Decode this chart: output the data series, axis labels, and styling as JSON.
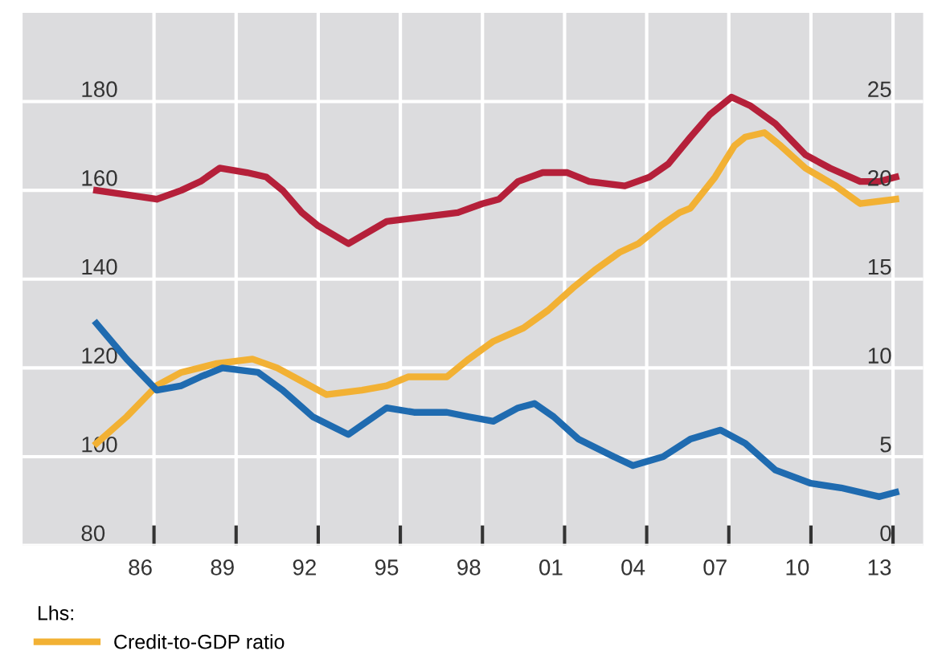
{
  "chart_data": {
    "type": "line",
    "legend_title": "Lhs:",
    "legend": "bottom left",
    "grid": true,
    "line_style": "solid",
    "marker": "none",
    "xlim": [
      1981.7,
      2014.6
    ],
    "ylim": [
      80,
      200
    ],
    "y2lim": [
      0,
      30
    ],
    "xticks": [
      {
        "value": 1986,
        "label": "86"
      },
      {
        "value": 1989,
        "label": "89"
      },
      {
        "value": 1992,
        "label": "92"
      },
      {
        "value": 1995,
        "label": "95"
      },
      {
        "value": 1998,
        "label": "98"
      },
      {
        "value": 2001,
        "label": "01"
      },
      {
        "value": 2004,
        "label": "04"
      },
      {
        "value": 2007,
        "label": "07"
      },
      {
        "value": 2010,
        "label": "10"
      },
      {
        "value": 2013,
        "label": "13"
      },
      {
        "value": 1986.5,
        "label": null
      },
      {
        "value": 1989.5,
        "label": null
      },
      {
        "value": 1992.5,
        "label": null
      },
      {
        "value": 1995.5,
        "label": null
      },
      {
        "value": 1998.5,
        "label": null
      },
      {
        "value": 2001.5,
        "label": null
      },
      {
        "value": 2004.5,
        "label": null
      },
      {
        "value": 2007.5,
        "label": null
      },
      {
        "value": 2010.5,
        "label": null
      },
      {
        "value": 2013.5,
        "label": null
      }
    ],
    "yticks": [
      80,
      100,
      120,
      140,
      160,
      180
    ],
    "y2ticks": [
      0,
      5,
      10,
      15,
      20,
      25
    ],
    "series": [
      {
        "color": "#b5203a",
        "x": [
          1984.4,
          1985.5,
          1986.6,
          1987.5,
          1988.2,
          1988.9,
          1989.9,
          1990.6,
          1991.2,
          1991.9,
          1992.5,
          1993.6,
          1995.0,
          1996.3,
          1997.6,
          1998.5,
          1999.1,
          1999.8,
          2000.7,
          2001.6,
          2002.4,
          2003.7,
          2004.6,
          2005.3,
          2006.1,
          2006.8,
          2007.6,
          2008.3,
          2009.2,
          2010.3,
          2011.2,
          2012.3,
          2013.0,
          2013.6
        ],
        "values": [
          160,
          159,
          158,
          160,
          162,
          165,
          164,
          163,
          160,
          155,
          152,
          148,
          153,
          154,
          155,
          157,
          158,
          162,
          164,
          164,
          162,
          161,
          163,
          166,
          172,
          177,
          181,
          179,
          175,
          168,
          165,
          162,
          162,
          163
        ]
      },
      {
        "name": "Credit-to-GDP ratio",
        "color": "#f2b134",
        "x": [
          1984.4,
          1985.5,
          1986.6,
          1987.5,
          1988.8,
          1990.1,
          1991.0,
          1991.9,
          1992.8,
          1994.1,
          1995.0,
          1995.8,
          1997.2,
          1998.0,
          1998.9,
          2000.0,
          2000.9,
          2001.8,
          2002.6,
          2003.5,
          2004.2,
          2005.0,
          2005.7,
          2006.1,
          2007.0,
          2007.7,
          2008.1,
          2008.8,
          2009.4,
          2010.3,
          2011.4,
          2012.3,
          2013.6
        ],
        "values": [
          103,
          109,
          116,
          119,
          121,
          122,
          120,
          117,
          114,
          115,
          116,
          118,
          118,
          122,
          126,
          129,
          133,
          138,
          142,
          146,
          148,
          152,
          155,
          156,
          163,
          170,
          172,
          173,
          170,
          165,
          161,
          157,
          158
        ]
      },
      {
        "color": "#1f6bb0",
        "x": [
          1984.4,
          1985.5,
          1986.6,
          1987.5,
          1988.2,
          1989.0,
          1990.3,
          1991.2,
          1992.3,
          1993.6,
          1995.0,
          1996.0,
          1997.2,
          1998.0,
          1998.9,
          1999.8,
          2000.4,
          2001.1,
          2002.0,
          2003.3,
          2004.0,
          2005.1,
          2006.1,
          2007.2,
          2008.1,
          2009.2,
          2010.5,
          2011.6,
          2013.0,
          2013.6
        ],
        "values": [
          130,
          122,
          115,
          116,
          118,
          120,
          119,
          115,
          109,
          105,
          111,
          110,
          110,
          109,
          108,
          111,
          112,
          109,
          104,
          100,
          98,
          100,
          104,
          106,
          103,
          97,
          94,
          93,
          91,
          92
        ]
      }
    ]
  }
}
